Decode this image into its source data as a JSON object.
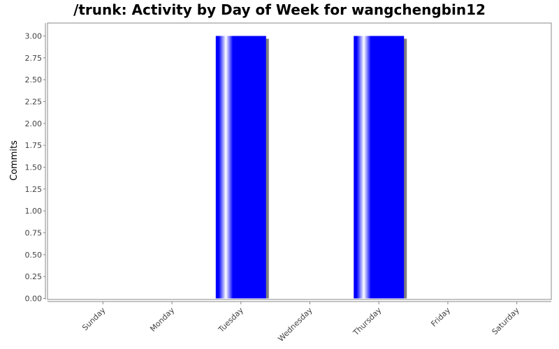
{
  "chart_data": {
    "type": "bar",
    "title": "/trunk: Activity by Day of Week for wangchengbin12",
    "xlabel": "",
    "ylabel": "Commits",
    "categories": [
      "Sunday",
      "Monday",
      "Tuesday",
      "Wednesday",
      "Thursday",
      "Friday",
      "Saturday"
    ],
    "series": [
      {
        "values": [
          0,
          0,
          3,
          0,
          3,
          0,
          0
        ]
      }
    ],
    "ylim": [
      0,
      3.0
    ],
    "yticks": [
      "0.00",
      "0.25",
      "0.50",
      "0.75",
      "1.00",
      "1.25",
      "1.50",
      "1.75",
      "2.00",
      "2.25",
      "2.50",
      "2.75",
      "3.00"
    ],
    "grid": false,
    "legend": "none",
    "colors": {
      "bar": "#0000ff",
      "bar_highlight": "#ffffff",
      "shadow": "#808080",
      "plot_border": "#888888",
      "axis": "#888888"
    }
  }
}
